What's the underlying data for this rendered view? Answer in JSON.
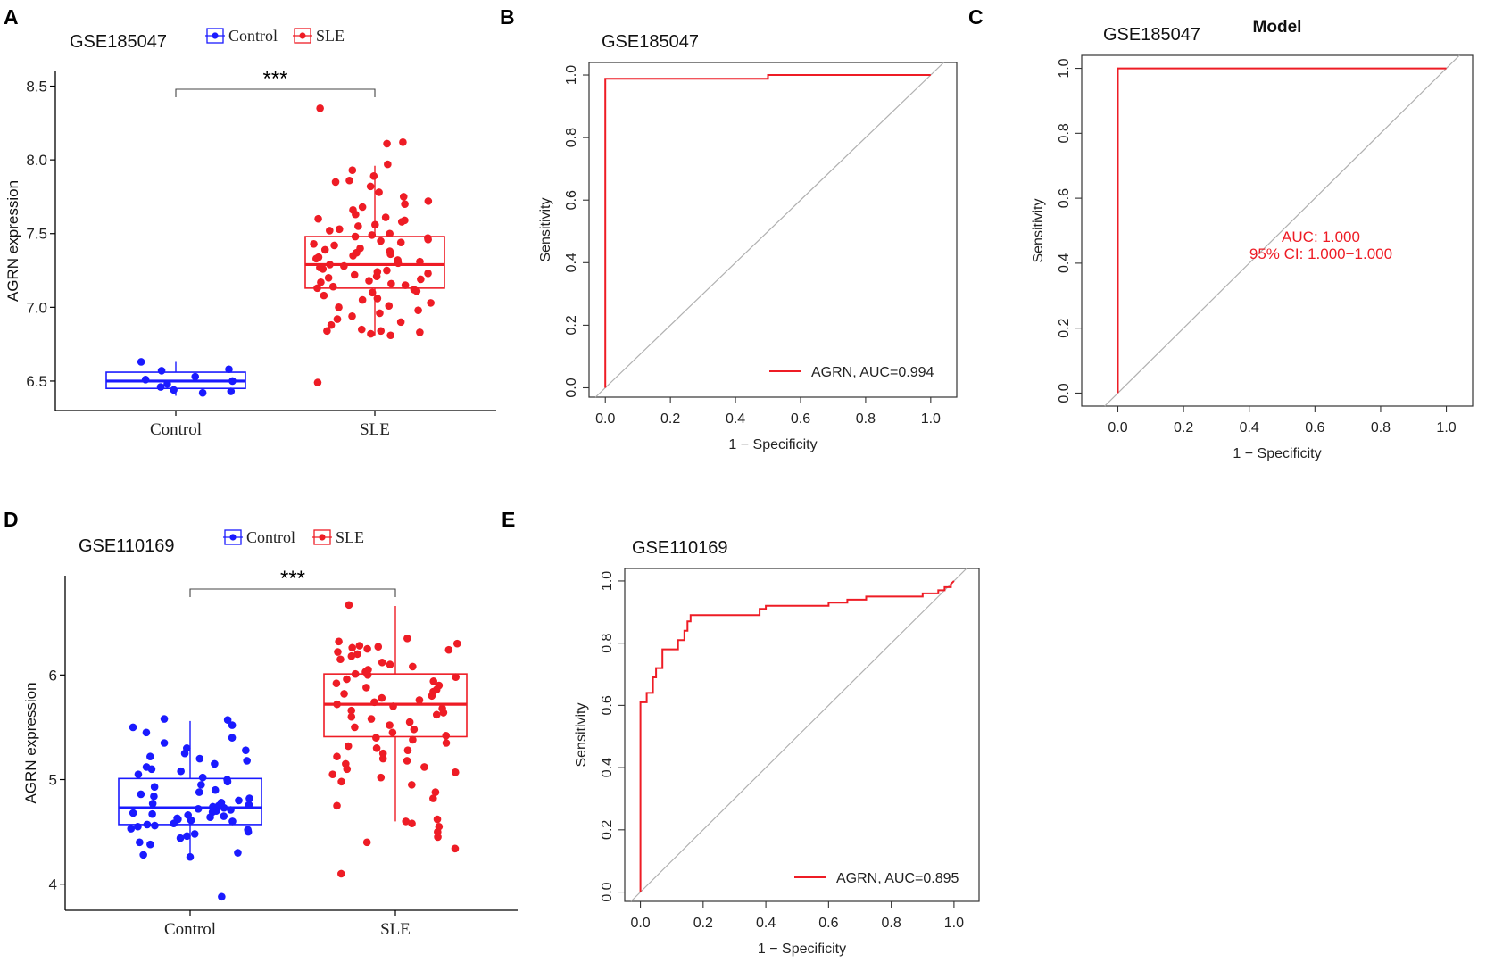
{
  "colors": {
    "control": "#1a1aff",
    "sle": "#ee1c25",
    "roc": "#ee1c25",
    "diag": "#b0b0b0",
    "axis": "#333333"
  },
  "chart_data": [
    {
      "panel": "A",
      "type": "box",
      "title": "GSE185047",
      "legend": [
        "Control",
        "SLE"
      ],
      "legend_placement": "top",
      "ylabel": "AGRN expression",
      "ylim": [
        6.3,
        8.6
      ],
      "yticks": [
        6.5,
        7.0,
        7.5,
        8.0,
        8.5
      ],
      "ytick_labels": [
        "6.5",
        "7.0",
        "7.5",
        "8.0",
        "8.5"
      ],
      "categories": [
        "Control",
        "SLE"
      ],
      "significance": "***",
      "groups": [
        {
          "name": "Control",
          "q1": 6.45,
          "median": 6.5,
          "q3": 6.56,
          "whisker_low": 6.4,
          "whisker_high": 6.63,
          "points": [
            6.63,
            6.58,
            6.57,
            6.53,
            6.51,
            6.5,
            6.48,
            6.46,
            6.44,
            6.43,
            6.42
          ]
        },
        {
          "name": "SLE",
          "q1": 7.13,
          "median": 7.29,
          "q3": 7.48,
          "whisker_low": 6.81,
          "whisker_high": 7.96,
          "points": [
            8.35,
            8.12,
            8.11,
            7.97,
            7.93,
            7.89,
            7.86,
            7.85,
            7.82,
            7.78,
            7.75,
            7.72,
            7.7,
            7.68,
            7.66,
            7.63,
            7.61,
            7.6,
            7.59,
            7.58,
            7.56,
            7.55,
            7.53,
            7.52,
            7.5,
            7.49,
            7.48,
            7.47,
            7.46,
            7.45,
            7.44,
            7.43,
            7.42,
            7.4,
            7.39,
            7.38,
            7.37,
            7.36,
            7.35,
            7.34,
            7.33,
            7.32,
            7.31,
            7.3,
            7.29,
            7.28,
            7.27,
            7.26,
            7.25,
            7.24,
            7.23,
            7.22,
            7.21,
            7.2,
            7.19,
            7.18,
            7.17,
            7.16,
            7.15,
            7.14,
            7.13,
            7.12,
            7.11,
            7.1,
            7.08,
            7.06,
            7.05,
            7.03,
            7.01,
            7.0,
            6.98,
            6.96,
            6.94,
            6.92,
            6.9,
            6.88,
            6.85,
            6.84,
            6.84,
            6.83,
            6.82,
            6.81,
            6.49
          ]
        }
      ]
    },
    {
      "panel": "B",
      "type": "line",
      "subtype": "roc",
      "title": "GSE185047",
      "xlabel": "1 − Specificity",
      "ylabel": "Sensitivity",
      "xlim": [
        -0.05,
        1.08
      ],
      "ylim": [
        -0.03,
        1.04
      ],
      "ticks": [
        0.0,
        0.2,
        0.4,
        0.6,
        0.8,
        1.0
      ],
      "tick_labels": [
        "0.0",
        "0.2",
        "0.4",
        "0.6",
        "0.8",
        "1.0"
      ],
      "legend_label": "AGRN, AUC=0.994",
      "legend_placement": "bottom-right",
      "series": [
        {
          "name": "AGRN",
          "x": [
            0,
            0,
            0.5,
            0.5,
            1
          ],
          "y": [
            0,
            0.988,
            0.988,
            1,
            1
          ]
        }
      ]
    },
    {
      "panel": "C",
      "type": "line",
      "subtype": "roc",
      "title": "Model",
      "label": "GSE185047",
      "xlabel": "1 − Specificity",
      "ylabel": "Sensitivity",
      "xlim": [
        -0.11,
        1.08
      ],
      "ylim": [
        -0.04,
        1.04
      ],
      "ticks": [
        0.0,
        0.2,
        0.4,
        0.6,
        0.8,
        1.0
      ],
      "tick_labels": [
        "0.0",
        "0.2",
        "0.4",
        "0.6",
        "0.8",
        "1.0"
      ],
      "annotations": [
        "AUC: 1.000",
        "95% CI: 1.000−1.000"
      ],
      "series": [
        {
          "name": "Model",
          "x": [
            0,
            0,
            1
          ],
          "y": [
            0,
            1,
            1
          ]
        }
      ]
    },
    {
      "panel": "D",
      "type": "box",
      "title": "GSE110169",
      "legend": [
        "Control",
        "SLE"
      ],
      "legend_placement": "top",
      "ylabel": "AGRN expression",
      "ylim": [
        3.75,
        6.95
      ],
      "yticks": [
        4,
        5,
        6
      ],
      "ytick_labels": [
        "4",
        "5",
        "6"
      ],
      "categories": [
        "Control",
        "SLE"
      ],
      "significance": "***",
      "groups": [
        {
          "name": "Control",
          "q1": 4.57,
          "median": 4.73,
          "q3": 5.01,
          "whisker_low": 4.27,
          "whisker_high": 5.56,
          "points": [
            5.58,
            5.57,
            5.52,
            5.5,
            5.45,
            5.4,
            5.35,
            5.3,
            5.28,
            5.25,
            5.22,
            5.2,
            5.18,
            5.15,
            5.12,
            5.1,
            5.08,
            5.05,
            5.02,
            5.0,
            4.98,
            4.95,
            4.93,
            4.9,
            4.88,
            4.86,
            4.84,
            4.82,
            4.8,
            4.78,
            4.77,
            4.76,
            4.75,
            4.74,
            4.73,
            4.72,
            4.71,
            4.7,
            4.69,
            4.68,
            4.67,
            4.66,
            4.65,
            4.64,
            4.63,
            4.62,
            4.61,
            4.6,
            4.58,
            4.57,
            4.56,
            4.55,
            4.53,
            4.52,
            4.5,
            4.48,
            4.46,
            4.44,
            4.4,
            4.38,
            4.3,
            4.28,
            4.26,
            3.88
          ]
        },
        {
          "name": "SLE",
          "q1": 5.41,
          "median": 5.72,
          "q3": 6.01,
          "whisker_low": 4.6,
          "whisker_high": 6.66,
          "points": [
            6.67,
            6.35,
            6.32,
            6.3,
            6.28,
            6.27,
            6.26,
            6.25,
            6.24,
            6.22,
            6.2,
            6.18,
            6.15,
            6.12,
            6.1,
            6.08,
            6.05,
            6.03,
            6.01,
            6.0,
            5.98,
            5.96,
            5.94,
            5.92,
            5.9,
            5.88,
            5.86,
            5.84,
            5.82,
            5.8,
            5.78,
            5.76,
            5.74,
            5.72,
            5.7,
            5.68,
            5.66,
            5.64,
            5.62,
            5.6,
            5.58,
            5.55,
            5.52,
            5.5,
            5.48,
            5.45,
            5.42,
            5.4,
            5.38,
            5.35,
            5.32,
            5.3,
            5.28,
            5.25,
            5.22,
            5.2,
            5.18,
            5.15,
            5.12,
            5.1,
            5.07,
            5.05,
            5.02,
            4.98,
            4.95,
            4.88,
            4.82,
            4.75,
            4.62,
            4.6,
            4.58,
            4.55,
            4.5,
            4.45,
            4.4,
            4.34,
            4.1
          ]
        }
      ]
    },
    {
      "panel": "E",
      "type": "line",
      "subtype": "roc",
      "title": "GSE110169",
      "xlabel": "1 − Specificity",
      "ylabel": "Sensitivity",
      "xlim": [
        -0.05,
        1.08
      ],
      "ylim": [
        -0.03,
        1.04
      ],
      "ticks": [
        0.0,
        0.2,
        0.4,
        0.6,
        0.8,
        1.0
      ],
      "tick_labels": [
        "0.0",
        "0.2",
        "0.4",
        "0.6",
        "0.8",
        "1.0"
      ],
      "legend_label": "AGRN, AUC=0.895",
      "legend_placement": "bottom-right",
      "series": [
        {
          "name": "AGRN",
          "x": [
            0,
            0,
            0.02,
            0.02,
            0.04,
            0.04,
            0.05,
            0.05,
            0.07,
            0.07,
            0.08,
            0.08,
            0.12,
            0.12,
            0.14,
            0.14,
            0.15,
            0.15,
            0.16,
            0.16,
            0.38,
            0.38,
            0.4,
            0.4,
            0.6,
            0.6,
            0.66,
            0.66,
            0.72,
            0.72,
            0.9,
            0.9,
            0.95,
            0.95,
            0.97,
            0.97,
            0.99,
            0.99,
            1
          ],
          "y": [
            0,
            0.61,
            0.61,
            0.64,
            0.64,
            0.69,
            0.69,
            0.72,
            0.72,
            0.78,
            0.78,
            0.78,
            0.78,
            0.81,
            0.81,
            0.84,
            0.84,
            0.87,
            0.87,
            0.89,
            0.89,
            0.91,
            0.91,
            0.92,
            0.92,
            0.93,
            0.93,
            0.94,
            0.94,
            0.95,
            0.95,
            0.96,
            0.96,
            0.97,
            0.97,
            0.98,
            0.98,
            0.99,
            1.0
          ]
        }
      ]
    }
  ]
}
